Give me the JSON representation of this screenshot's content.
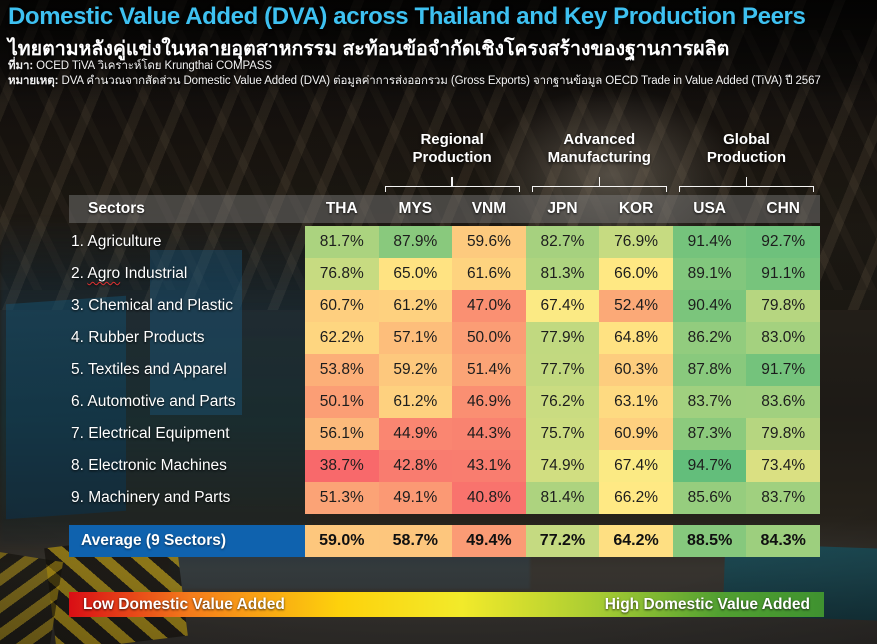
{
  "header": {
    "title": "Domestic Value Added (DVA) across Thailand and Key Production Peers",
    "subtitle": "ไทยตามหลังคู่แข่งในหลายอุตสาหกรรม สะท้อนข้อจำกัดเชิงโครงสร้างของฐานการผลิต",
    "source_label": "ที่มา:",
    "source_text": "OCED TiVA วิเคราะห์โดย Krungthai COMPASS",
    "note_label": "หมายเหตุ:",
    "note_text": "DVA คำนวณจากสัดส่วน Domestic Value Added (DVA) ต่อมูลค่าการส่งออกรวม (Gross Exports) จากฐานข้อมูล OECD Trade in Value Added (TiVA) ปี 2567"
  },
  "colors": {
    "title": "#3EC1F1",
    "average_label_bg": "#0F62AE",
    "header_band_bg": "rgba(128,128,128,0.45)"
  },
  "chart_data": {
    "type": "heatmap",
    "title": "Domestic Value Added (DVA) across Thailand and Key Production Peers",
    "sectors_header": "Sectors",
    "columns": [
      "THA",
      "MYS",
      "VNM",
      "JPN",
      "KOR",
      "USA",
      "CHN"
    ],
    "column_groups": [
      {
        "label": "Regional Production",
        "label_lines": [
          "Regional",
          "Production"
        ],
        "first_col": 1,
        "last_col": 2
      },
      {
        "label": "Advanced Manufacturing",
        "label_lines": [
          "Advanced",
          "Manufacturing"
        ],
        "first_col": 3,
        "last_col": 4
      },
      {
        "label": "Global Production",
        "label_lines": [
          "Global",
          "Production"
        ],
        "first_col": 5,
        "last_col": 6
      }
    ],
    "rows": [
      {
        "label": "1. Agriculture",
        "values": [
          81.7,
          87.9,
          59.6,
          82.7,
          76.9,
          91.4,
          92.7
        ]
      },
      {
        "label": "2. Agro Industrial",
        "squiggle": "Agro",
        "values": [
          76.8,
          65.0,
          61.6,
          81.3,
          66.0,
          89.1,
          91.1
        ]
      },
      {
        "label": "3. Chemical and Plastic",
        "values": [
          60.7,
          61.2,
          47.0,
          67.4,
          52.4,
          90.4,
          79.8
        ]
      },
      {
        "label": "4. Rubber Products",
        "values": [
          62.2,
          57.1,
          50.0,
          77.9,
          64.8,
          86.2,
          83.0
        ]
      },
      {
        "label": "5. Textiles and Apparel",
        "values": [
          53.8,
          59.2,
          51.4,
          77.7,
          60.3,
          87.8,
          91.7
        ]
      },
      {
        "label": "6. Automotive and Parts",
        "values": [
          50.1,
          61.2,
          46.9,
          76.2,
          63.1,
          83.7,
          83.6
        ]
      },
      {
        "label": "7. Electrical Equipment",
        "values": [
          56.1,
          44.9,
          44.3,
          75.7,
          60.9,
          87.3,
          79.8
        ]
      },
      {
        "label": "8. Electronic Machines",
        "values": [
          38.7,
          42.8,
          43.1,
          74.9,
          67.4,
          94.7,
          73.4
        ]
      },
      {
        "label": "9. Machinery and Parts",
        "values": [
          51.3,
          49.1,
          40.8,
          81.4,
          66.2,
          85.6,
          83.7
        ]
      }
    ],
    "average_row": {
      "label": "Average (9 Sectors)",
      "values": [
        59.0,
        58.7,
        49.4,
        77.2,
        64.2,
        88.5,
        84.3
      ]
    },
    "value_format": "percent_1dp",
    "color_scale": {
      "min_value": 38.7,
      "mid_value": 66.7,
      "max_value": 94.7,
      "min_color": "#F8696B",
      "mid_color": "#FFEB84",
      "max_color": "#63BE7B"
    },
    "legend": {
      "low_label": "Low Domestic Value Added",
      "high_label": "High Domestic Value Added",
      "gradient": [
        "#D90E15",
        "#F47B1B",
        "#FDD20C",
        "#F2EA2A",
        "#A8CC33",
        "#52A031",
        "#3F9230"
      ]
    }
  }
}
